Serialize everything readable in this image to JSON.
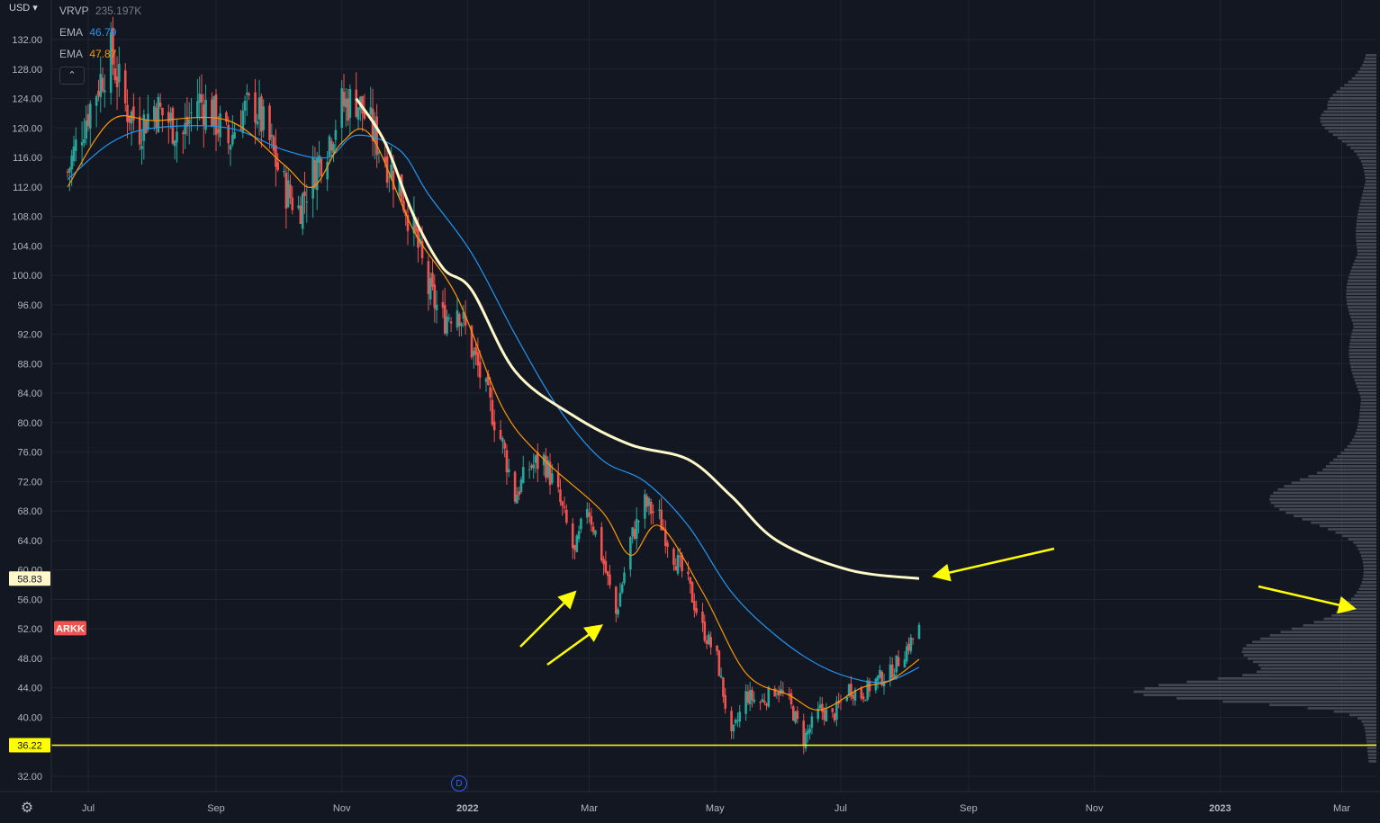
{
  "price_scale_currency": "USD",
  "legend": {
    "vrvp": {
      "name": "VRVP",
      "value": "235.197K"
    },
    "ema_fast": {
      "name": "EMA",
      "value": "46.79",
      "color": "#2196f3"
    },
    "ema_slow": {
      "name": "EMA",
      "value": "47.87",
      "color": "#ff9800"
    }
  },
  "labels": {
    "ticker": "ARKK",
    "ma_value": "58.83",
    "support_value": "36.22"
  },
  "colors": {
    "background": "#131722",
    "grid": "#1f2433",
    "up": "#26a69a",
    "down": "#ef5350",
    "long_ma": "#fff8c8",
    "annotation": "#ffff00",
    "volume_profile": "#6b6f7a"
  },
  "chart_data": {
    "type": "candlestick",
    "title": "",
    "y_ticks": [
      "32.00",
      "36.00",
      "40.00",
      "44.00",
      "48.00",
      "52.00",
      "56.00",
      "60.00",
      "64.00",
      "68.00",
      "72.00",
      "76.00",
      "80.00",
      "84.00",
      "88.00",
      "92.00",
      "96.00",
      "100.00",
      "104.00",
      "108.00",
      "112.00",
      "116.00",
      "120.00",
      "124.00",
      "128.00",
      "132.00"
    ],
    "ylim": [
      30,
      134
    ],
    "x_ticks": [
      "Jul",
      "Sep",
      "Nov",
      "2022",
      "Mar",
      "May",
      "Jul",
      "Sep",
      "Nov",
      "2023",
      "Mar"
    ],
    "price_path": [
      [
        "2021-06-21",
        114
      ],
      [
        "2021-06-28",
        120
      ],
      [
        "2021-07-06",
        126
      ],
      [
        "2021-07-12",
        130
      ],
      [
        "2021-07-19",
        123
      ],
      [
        "2021-07-26",
        120
      ],
      [
        "2021-08-02",
        123
      ],
      [
        "2021-08-09",
        121
      ],
      [
        "2021-08-16",
        119
      ],
      [
        "2021-08-23",
        124
      ],
      [
        "2021-08-30",
        122
      ],
      [
        "2021-09-07",
        118
      ],
      [
        "2021-09-13",
        122
      ],
      [
        "2021-09-20",
        123
      ],
      [
        "2021-09-27",
        118
      ],
      [
        "2021-10-04",
        112
      ],
      [
        "2021-10-11",
        109
      ],
      [
        "2021-10-18",
        114
      ],
      [
        "2021-10-25",
        118
      ],
      [
        "2021-11-01",
        123
      ],
      [
        "2021-11-08",
        124
      ],
      [
        "2021-11-15",
        120
      ],
      [
        "2021-11-22",
        116
      ],
      [
        "2021-11-29",
        112
      ],
      [
        "2021-12-06",
        106
      ],
      [
        "2021-12-13",
        98
      ],
      [
        "2021-12-20",
        94
      ],
      [
        "2021-12-27",
        96
      ],
      [
        "2022-01-03",
        90
      ],
      [
        "2022-01-10",
        84
      ],
      [
        "2022-01-18",
        77
      ],
      [
        "2022-01-24",
        70
      ],
      [
        "2022-01-31",
        74
      ],
      [
        "2022-02-07",
        75
      ],
      [
        "2022-02-14",
        70
      ],
      [
        "2022-02-22",
        62
      ],
      [
        "2022-02-28",
        69
      ],
      [
        "2022-03-07",
        62
      ],
      [
        "2022-03-14",
        54
      ],
      [
        "2022-03-21",
        64
      ],
      [
        "2022-03-28",
        69
      ],
      [
        "2022-04-04",
        67
      ],
      [
        "2022-04-11",
        62
      ],
      [
        "2022-04-18",
        58
      ],
      [
        "2022-04-25",
        52
      ],
      [
        "2022-05-02",
        48
      ],
      [
        "2022-05-09",
        37
      ],
      [
        "2022-05-16",
        43
      ],
      [
        "2022-05-23",
        42
      ],
      [
        "2022-05-31",
        44
      ],
      [
        "2022-06-06",
        42
      ],
      [
        "2022-06-13",
        37
      ],
      [
        "2022-06-21",
        41
      ],
      [
        "2022-06-27",
        40
      ],
      [
        "2022-07-05",
        44
      ],
      [
        "2022-07-11",
        43
      ],
      [
        "2022-07-18",
        45
      ],
      [
        "2022-07-25",
        46
      ],
      [
        "2022-08-01",
        49
      ],
      [
        "2022-08-08",
        52
      ]
    ],
    "ema_fast_path": [
      [
        "2021-06-21",
        113
      ],
      [
        "2021-07-12",
        118
      ],
      [
        "2021-08-02",
        120
      ],
      [
        "2021-09-07",
        120
      ],
      [
        "2021-10-04",
        117
      ],
      [
        "2021-10-25",
        116
      ],
      [
        "2021-11-08",
        119
      ],
      [
        "2021-11-29",
        117
      ],
      [
        "2021-12-13",
        111
      ],
      [
        "2022-01-03",
        103
      ],
      [
        "2022-01-24",
        92
      ],
      [
        "2022-02-14",
        82
      ],
      [
        "2022-03-07",
        75
      ],
      [
        "2022-03-28",
        72
      ],
      [
        "2022-04-18",
        66
      ],
      [
        "2022-05-09",
        57
      ],
      [
        "2022-05-31",
        51
      ],
      [
        "2022-06-21",
        47
      ],
      [
        "2022-07-11",
        45
      ],
      [
        "2022-07-25",
        45
      ],
      [
        "2022-08-08",
        46.79
      ]
    ],
    "ema_slow_path": [
      [
        "2021-06-21",
        112
      ],
      [
        "2021-07-12",
        121
      ],
      [
        "2021-08-02",
        121
      ],
      [
        "2021-09-07",
        121
      ],
      [
        "2021-10-04",
        115
      ],
      [
        "2021-10-18",
        112
      ],
      [
        "2021-11-01",
        118
      ],
      [
        "2021-11-15",
        119
      ],
      [
        "2021-12-06",
        106
      ],
      [
        "2021-12-27",
        97
      ],
      [
        "2022-01-18",
        82
      ],
      [
        "2022-02-07",
        75
      ],
      [
        "2022-03-07",
        68
      ],
      [
        "2022-03-21",
        62
      ],
      [
        "2022-04-04",
        66
      ],
      [
        "2022-04-25",
        57
      ],
      [
        "2022-05-16",
        46
      ],
      [
        "2022-06-06",
        43
      ],
      [
        "2022-06-21",
        41
      ],
      [
        "2022-07-11",
        44
      ],
      [
        "2022-07-25",
        45
      ],
      [
        "2022-08-08",
        47.87
      ]
    ],
    "long_ma_path": [
      [
        "2021-11-08",
        124
      ],
      [
        "2021-11-22",
        118
      ],
      [
        "2021-12-06",
        108
      ],
      [
        "2021-12-20",
        101
      ],
      [
        "2022-01-03",
        98
      ],
      [
        "2022-01-24",
        87
      ],
      [
        "2022-02-21",
        81
      ],
      [
        "2022-03-21",
        77
      ],
      [
        "2022-04-18",
        75
      ],
      [
        "2022-05-09",
        70
      ],
      [
        "2022-05-31",
        64
      ],
      [
        "2022-07-05",
        60
      ],
      [
        "2022-08-08",
        58.83
      ]
    ],
    "support_level": 36.22
  }
}
